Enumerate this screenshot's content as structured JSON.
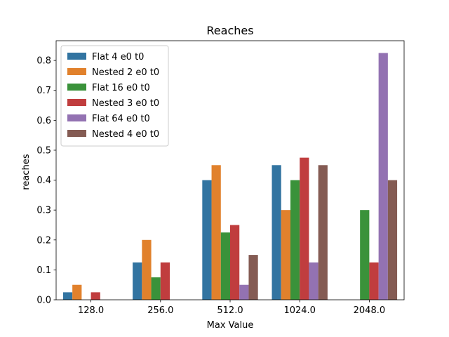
{
  "chart_data": {
    "type": "bar",
    "title": "Reaches",
    "xlabel": "Max Value",
    "ylabel": "reaches",
    "categories": [
      "128.0",
      "256.0",
      "512.0",
      "1024.0",
      "2048.0"
    ],
    "ylim": [
      0,
      0.866
    ],
    "yticks": [
      "0.0",
      "0.1",
      "0.2",
      "0.3",
      "0.4",
      "0.5",
      "0.6",
      "0.7",
      "0.8"
    ],
    "legend_position": "top-left",
    "grid": false,
    "series": [
      {
        "name": "Flat 4 e0 t0",
        "color": "#3274a1",
        "values": [
          0.025,
          0.125,
          0.4,
          0.45,
          0
        ]
      },
      {
        "name": "Nested 2 e0 t0",
        "color": "#e1812c",
        "values": [
          0.05,
          0.2,
          0.45,
          0.3,
          0
        ]
      },
      {
        "name": "Flat 16 e0 t0",
        "color": "#3a923a",
        "values": [
          0,
          0.075,
          0.225,
          0.4,
          0.3
        ]
      },
      {
        "name": "Nested 3 e0 t0",
        "color": "#c03d3e",
        "values": [
          0.025,
          0.125,
          0.25,
          0.475,
          0.125
        ]
      },
      {
        "name": "Flat 64 e0 t0",
        "color": "#9372b2",
        "values": [
          0,
          0,
          0.05,
          0.125,
          0.825
        ]
      },
      {
        "name": "Nested 4 e0 t0",
        "color": "#845b53",
        "values": [
          0,
          0,
          0.15,
          0.45,
          0.4
        ]
      }
    ]
  }
}
